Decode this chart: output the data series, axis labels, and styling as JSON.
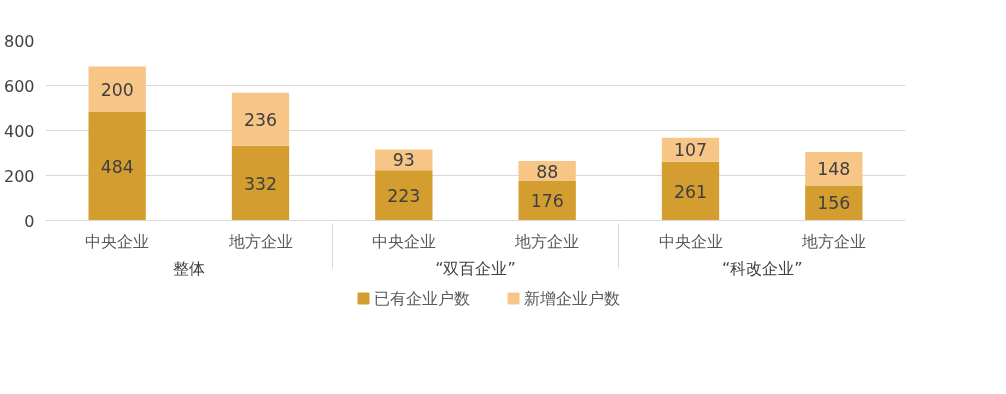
{
  "chart_data": {
    "type": "bar",
    "stacked": true,
    "categories": [
      "中央企业",
      "地方企业",
      "中央企业",
      "地方企业",
      "中央企业",
      "地方企业"
    ],
    "annotations": [
      "整体",
      "“双百企业”",
      "“科改企业”"
    ],
    "series": [
      {
        "name": "已有企业户数",
        "color": "#d39e2f",
        "values": [
          484,
          332,
          223,
          176,
          261,
          156
        ]
      },
      {
        "name": "新增企业户数",
        "color": "#f7c687",
        "values": [
          200,
          236,
          93,
          88,
          107,
          148
        ]
      }
    ],
    "ylim": [
      0,
      800
    ],
    "yticks": [
      0,
      200,
      400,
      600,
      800
    ],
    "grid": "y",
    "legend": "bottom",
    "data_labels": true
  }
}
